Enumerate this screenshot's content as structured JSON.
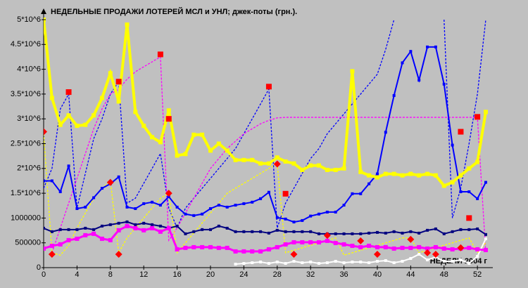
{
  "chart_data": {
    "type": "line",
    "title": "НЕДЕЛЬНЫЕ ПРОДАЖИ ЛОТЕРЕЙ МСЛ и УНЛ; джек-поты (грн.).",
    "x_label": "НЕДЕЛИ 2004 г",
    "x": [
      0,
      1,
      2,
      3,
      4,
      5,
      6,
      7,
      8,
      9,
      10,
      11,
      12,
      13,
      14,
      15,
      16,
      17,
      18,
      19,
      20,
      21,
      22,
      23,
      24,
      25,
      26,
      27,
      28,
      29,
      30,
      31,
      32,
      33,
      34,
      35,
      36,
      37,
      38,
      39,
      40,
      41,
      42,
      43,
      44,
      45,
      46,
      47,
      48,
      49,
      50,
      51,
      52,
      53
    ],
    "xlim": [
      0,
      53
    ],
    "xticks": [
      0,
      4,
      8,
      12,
      16,
      20,
      24,
      28,
      32,
      36,
      40,
      44,
      48,
      52
    ],
    "ylim": [
      0,
      5000000
    ],
    "yticks": [
      0,
      500000,
      1000000,
      {
        "value": 1500000,
        "label": "1.5*10^6"
      },
      {
        "value": 2000000,
        "label": "2*10^6"
      },
      {
        "value": 2500000,
        "label": "2.5*10^6"
      },
      {
        "value": 3000000,
        "label": "3*10^6"
      },
      {
        "value": 3500000,
        "label": "3.5*10^6"
      },
      {
        "value": 4000000,
        "label": "4*10^6"
      },
      {
        "value": 4500000,
        "label": "4.5*10^6"
      },
      {
        "value": 5000000,
        "label": "5*10^6"
      }
    ],
    "series": [
      {
        "color": "#0000ff",
        "style": "dashed",
        "width": 1.3,
        "marker": "none",
        "values": [
          1600000,
          2000000,
          3200000,
          3500000,
          1200000,
          1900000,
          2600000,
          3000000,
          3500000,
          3750000,
          1300000,
          1400000,
          1700000,
          2000000,
          2300000,
          1200000,
          800000,
          1200000,
          1400000,
          1600000,
          1800000,
          2000000,
          2200000,
          2400000,
          2700000,
          3000000,
          3300000,
          3600000,
          800000,
          1300000,
          1600000,
          1900000,
          2200000,
          2400000,
          2700000,
          2900000,
          3100000,
          3300000,
          3500000,
          3700000,
          3900000,
          4400000,
          5000000,
          null,
          null,
          null,
          null,
          null,
          5000000,
          1000000,
          1600000,
          2500000,
          3500000,
          5000000
        ]
      },
      {
        "color": "#ff00ff",
        "style": "dashed",
        "width": 1.3,
        "marker": "none",
        "values": [
          null,
          300000,
          800000,
          1300000,
          1800000,
          2300000,
          2800000,
          3200000,
          3500000,
          3600000,
          3800000,
          3950000,
          4050000,
          4150000,
          4250000,
          550000,
          800000,
          1100000,
          1400000,
          1700000,
          2000000,
          2200000,
          2400000,
          2550000,
          2700000,
          2800000,
          2900000,
          2970000,
          3020000,
          3030000,
          3030000,
          3030000,
          3030000,
          3030000,
          3030000,
          3030000,
          3030000,
          3030000,
          3030000,
          3030000,
          3030000,
          3030000,
          3030000,
          3030000,
          3030000,
          3030000,
          3030000,
          3030000,
          3030000,
          3030000,
          3030000,
          3030000,
          3030000,
          300000
        ]
      },
      {
        "color": "#ffff00",
        "style": "dashed",
        "width": 1.3,
        "marker": "none",
        "values": [
          2700000,
          300000,
          250000,
          450000,
          800000,
          1100000,
          1400000,
          1600000,
          1750000,
          300000,
          600000,
          800000,
          1000000,
          1200000,
          1400000,
          1500000,
          300000,
          500000,
          700000,
          900000,
          1100000,
          1300000,
          1500000,
          1600000,
          1700000,
          1800000,
          1900000,
          2000000,
          2100000,
          300000,
          350000,
          400000,
          450000,
          500000,
          550000,
          600000,
          250000,
          300000,
          350000,
          400000,
          450000,
          500000,
          550000,
          600000,
          600000,
          300000,
          350000,
          400000,
          450000,
          500000,
          550000,
          600000,
          300000,
          500000
        ]
      },
      {
        "color": "#ffffff",
        "style": "solid",
        "width": 2,
        "marker": "square",
        "values": [
          null,
          null,
          null,
          null,
          null,
          null,
          null,
          null,
          null,
          null,
          null,
          null,
          null,
          null,
          null,
          null,
          null,
          null,
          null,
          null,
          null,
          null,
          null,
          71000,
          85000,
          99000,
          114000,
          85000,
          114000,
          85000,
          128000,
          99000,
          114000,
          85000,
          99000,
          128000,
          99000,
          114000,
          114000,
          99000,
          128000,
          142000,
          99000,
          128000,
          185000,
          270000,
          156000,
          213000,
          128000,
          128000,
          156000,
          85000,
          227000,
          582000
        ]
      },
      {
        "color": "#000080",
        "style": "solid",
        "width": 2,
        "marker": "square",
        "values": [
          795000,
          725000,
          767000,
          767000,
          767000,
          795000,
          767000,
          838000,
          866000,
          895000,
          923000,
          866000,
          895000,
          866000,
          838000,
          795000,
          838000,
          682000,
          725000,
          767000,
          767000,
          838000,
          795000,
          725000,
          725000,
          725000,
          725000,
          696000,
          753000,
          725000,
          725000,
          725000,
          725000,
          682000,
          682000,
          682000,
          682000,
          682000,
          682000,
          696000,
          710000,
          696000,
          725000,
          696000,
          725000,
          696000,
          753000,
          781000,
          682000,
          725000,
          767000,
          767000,
          781000,
          668000
        ]
      },
      {
        "color": "#ff00ff",
        "style": "solid",
        "width": 3,
        "marker": "square",
        "values": [
          384000,
          440000,
          469000,
          554000,
          582000,
          653000,
          682000,
          582000,
          554000,
          753000,
          838000,
          795000,
          753000,
          795000,
          725000,
          795000,
          369000,
          398000,
          412000,
          412000,
          412000,
          398000,
          398000,
          327000,
          327000,
          327000,
          327000,
          369000,
          412000,
          469000,
          511000,
          511000,
          511000,
          511000,
          540000,
          497000,
          469000,
          440000,
          412000,
          440000,
          412000,
          412000,
          384000,
          398000,
          398000,
          412000,
          384000,
          412000,
          384000,
          369000,
          384000,
          398000,
          369000,
          355000
        ]
      },
      {
        "color": "#0000ff",
        "style": "solid",
        "width": 2,
        "marker": "square",
        "values": [
          1750000,
          1750000,
          1530000,
          2050000,
          1190000,
          1220000,
          1410000,
          1600000,
          1690000,
          1830000,
          1220000,
          1190000,
          1290000,
          1320000,
          1260000,
          1430000,
          1220000,
          1080000,
          1050000,
          1080000,
          1190000,
          1260000,
          1220000,
          1260000,
          1290000,
          1320000,
          1390000,
          1520000,
          1010000,
          980000,
          920000,
          950000,
          1040000,
          1080000,
          1120000,
          1120000,
          1260000,
          1490000,
          1490000,
          1690000,
          1890000,
          2730000,
          3470000,
          4130000,
          4360000,
          3780000,
          4450000,
          4450000,
          3700000,
          2470000,
          1530000,
          1530000,
          1390000,
          1720000
        ]
      },
      {
        "color": "#ffff00",
        "style": "solid",
        "width": 4,
        "marker": "square",
        "values": [
          5000000,
          3420000,
          2880000,
          3070000,
          2860000,
          2880000,
          3070000,
          3420000,
          3920000,
          3350000,
          4900000,
          3140000,
          2860000,
          2630000,
          2530000,
          3170000,
          2260000,
          2290000,
          2680000,
          2680000,
          2360000,
          2500000,
          2360000,
          2170000,
          2170000,
          2170000,
          2100000,
          2100000,
          2220000,
          2140000,
          2100000,
          1970000,
          2060000,
          2060000,
          1970000,
          1970000,
          2000000,
          3960000,
          1930000,
          1860000,
          1820000,
          1890000,
          1890000,
          1860000,
          1890000,
          1860000,
          1890000,
          1860000,
          1650000,
          1720000,
          1860000,
          2000000,
          2130000,
          3140000
        ]
      },
      {
        "color": "#ff0000",
        "style": "markers",
        "width": 0,
        "marker": "diamond",
        "values": [
          2740000,
          270000,
          null,
          null,
          null,
          null,
          null,
          null,
          1720000,
          270000,
          null,
          null,
          null,
          null,
          null,
          1500000,
          null,
          null,
          null,
          null,
          null,
          null,
          null,
          null,
          null,
          null,
          null,
          null,
          2090000,
          null,
          270000,
          null,
          null,
          null,
          650000,
          null,
          null,
          null,
          540000,
          null,
          270000,
          null,
          null,
          null,
          570000,
          null,
          300000,
          270000,
          null,
          null,
          400000,
          null,
          null,
          null
        ]
      },
      {
        "color": "#ff0000",
        "style": "markers",
        "width": 0,
        "marker": "square",
        "values": [
          null,
          null,
          null,
          3540000,
          null,
          null,
          null,
          null,
          null,
          3750000,
          null,
          null,
          null,
          null,
          4300000,
          3000000,
          null,
          null,
          null,
          null,
          null,
          null,
          null,
          null,
          null,
          null,
          null,
          3650000,
          null,
          1490000,
          null,
          null,
          null,
          null,
          null,
          null,
          null,
          null,
          null,
          null,
          null,
          null,
          null,
          null,
          null,
          null,
          null,
          null,
          null,
          null,
          2740000,
          1000000,
          3040000,
          null
        ]
      }
    ]
  }
}
